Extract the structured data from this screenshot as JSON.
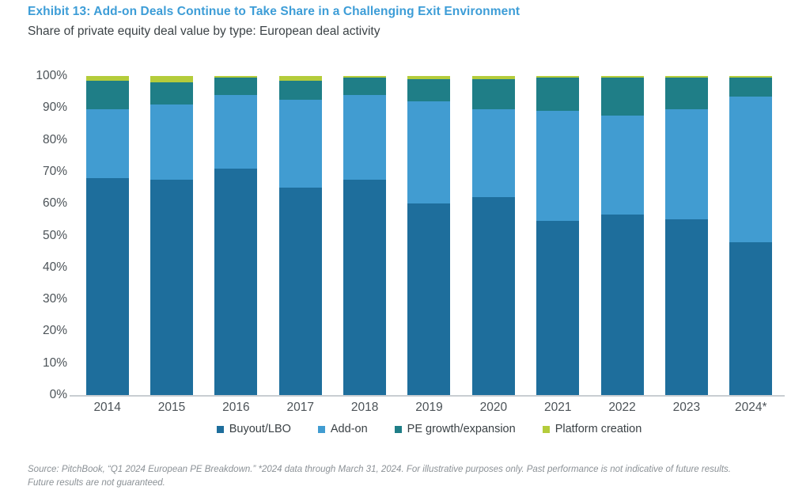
{
  "header": {
    "title": "Exhibit 13: Add-on Deals Continue to Take Share in a Challenging Exit Environment",
    "subtitle": "Share of private equity deal value by type: European deal activity"
  },
  "chart_data": {
    "type": "bar",
    "stacked": true,
    "title": "Share of private equity deal value by type: European deal activity",
    "categories": [
      "2014",
      "2015",
      "2016",
      "2017",
      "2018",
      "2019",
      "2020",
      "2021",
      "2022",
      "2023",
      "2024*"
    ],
    "series": [
      {
        "name": "Buyout/LBO",
        "color": "#1e6e9c",
        "values": [
          68,
          67.5,
          71,
          65,
          67.5,
          60,
          62,
          54.5,
          56.5,
          55,
          48
        ]
      },
      {
        "name": "Add-on",
        "color": "#419cd1",
        "values": [
          21.5,
          23.5,
          23,
          27.5,
          26.5,
          32,
          27.5,
          34.5,
          31,
          34.5,
          45.5
        ]
      },
      {
        "name": "PE growth/expansion",
        "color": "#1f7e87",
        "values": [
          9,
          7,
          5.5,
          6,
          5.5,
          7,
          9.5,
          10.5,
          12,
          10,
          6
        ]
      },
      {
        "name": "Platform creation",
        "color": "#b4cc3b",
        "values": [
          1.5,
          2,
          0.5,
          1.5,
          0.5,
          1,
          1,
          0.5,
          0.5,
          0.5,
          0.5
        ]
      }
    ],
    "xlabel": "",
    "ylabel": "",
    "ylim": [
      0,
      100
    ],
    "y_ticks": [
      "0%",
      "10%",
      "20%",
      "30%",
      "40%",
      "50%",
      "60%",
      "70%",
      "80%",
      "90%",
      "100%"
    ],
    "grid": false,
    "legend_position": "bottom"
  },
  "footer": {
    "line1": "Source: PitchBook, “Q1 2024 European PE Breakdown.” *2024 data through March 31, 2024. For illustrative purposes only. Past performance is not indicative of future results.",
    "line2": "Future results are not guaranteed."
  }
}
